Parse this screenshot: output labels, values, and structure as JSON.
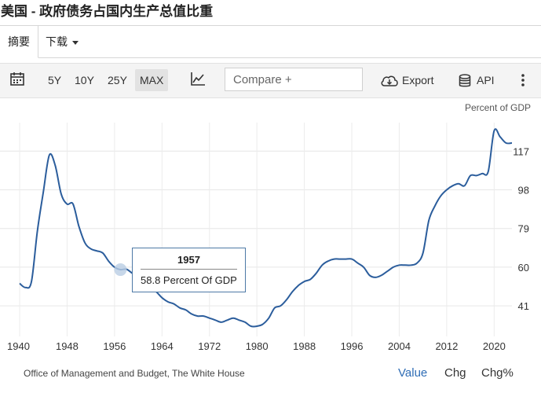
{
  "page": {
    "title": "美国 - 政府债务占国内生产总值比重"
  },
  "tabs": {
    "summary": "摘要",
    "download": "下载"
  },
  "toolbar": {
    "ranges": [
      "5Y",
      "10Y",
      "25Y",
      "MAX"
    ],
    "active_range": "MAX",
    "compare_placeholder": "Compare +",
    "export_label": "Export",
    "api_label": "API"
  },
  "tooltip": {
    "year": "1957",
    "value_text": "58.8 Percent Of GDP"
  },
  "footer": {
    "source": "Office of Management and Budget, The White House",
    "tabs": [
      "Value",
      "Chg",
      "Chg%"
    ],
    "active_tab": "Value"
  },
  "chart_data": {
    "type": "line",
    "ylabel": "Percent of GDP",
    "x_ticks": [
      "1940",
      "1948",
      "1956",
      "1964",
      "1972",
      "1980",
      "1988",
      "1996",
      "2004",
      "2012",
      "2020"
    ],
    "y_ticks": [
      41,
      60,
      79,
      98,
      117
    ],
    "xlim": [
      1940,
      2023
    ],
    "ylim": [
      26,
      131
    ],
    "line_color": "#2b5d9c",
    "grid": true,
    "highlight": {
      "x": 1957,
      "y": 58.8
    },
    "series": [
      {
        "x": [
          1940,
          1941,
          1942,
          1943,
          1944,
          1945,
          1946,
          1947,
          1948,
          1949,
          1950,
          1951,
          1952,
          1953,
          1954,
          1955,
          1956,
          1957,
          1958,
          1959,
          1960,
          1961,
          1962,
          1963,
          1964,
          1965,
          1966,
          1967,
          1968,
          1969,
          1970,
          1971,
          1972,
          1973,
          1974,
          1975,
          1976,
          1977,
          1978,
          1979,
          1980,
          1981,
          1982,
          1983,
          1984,
          1985,
          1986,
          1987,
          1988,
          1989,
          1990,
          1991,
          1992,
          1993,
          1994,
          1995,
          1996,
          1997,
          1998,
          1999,
          2000,
          2001,
          2002,
          2003,
          2004,
          2005,
          2006,
          2007,
          2008,
          2009,
          2010,
          2011,
          2012,
          2013,
          2014,
          2015,
          2016,
          2017,
          2018,
          2019,
          2020,
          2021,
          2022,
          2023
        ],
        "values": [
          52,
          50,
          53,
          78,
          97,
          115,
          110,
          96,
          91,
          91,
          80,
          72,
          69,
          68,
          67,
          63,
          60,
          58.8,
          59,
          57,
          55,
          51,
          50,
          48,
          45,
          43,
          42,
          40,
          39,
          37,
          36,
          36,
          35,
          34,
          33,
          34,
          35,
          34,
          33,
          31,
          31,
          32,
          35,
          40,
          41,
          44,
          48,
          51,
          53,
          54,
          57,
          61,
          63,
          64,
          64,
          64,
          64,
          62,
          60,
          56,
          55,
          56,
          58,
          60,
          61,
          61,
          61,
          62,
          67,
          83,
          90,
          95,
          98,
          100,
          101,
          100,
          105,
          105,
          106,
          107,
          127,
          124,
          121,
          121
        ]
      }
    ]
  }
}
